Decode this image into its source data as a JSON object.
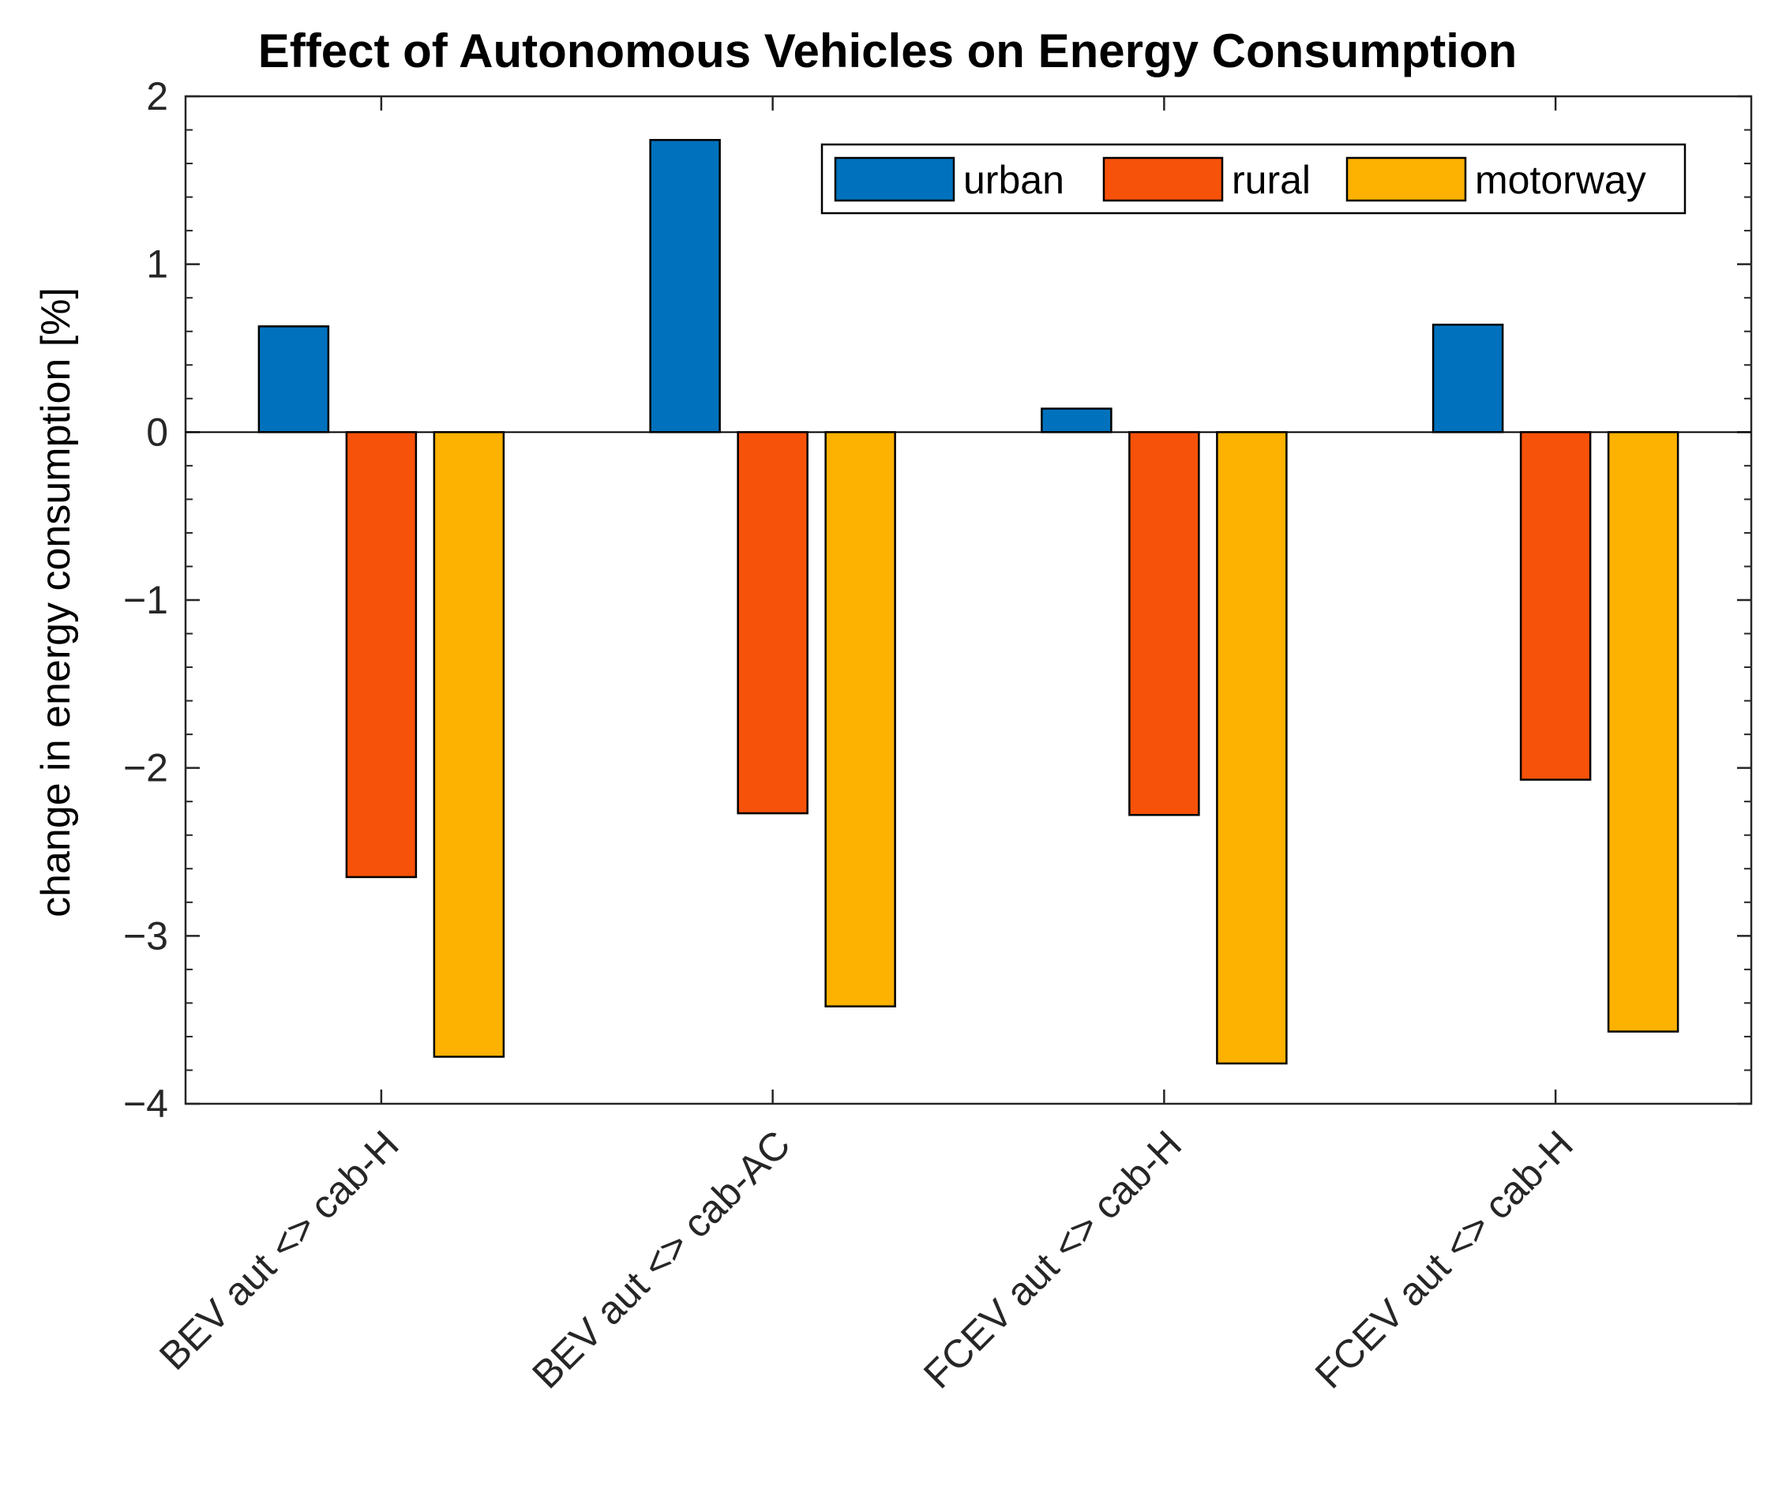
{
  "chart_data": {
    "type": "bar",
    "title": "Effect of Autonomous Vehicles on Energy Consumption",
    "xlabel": "",
    "ylabel": "change in energy consumption [%]",
    "ylim": [
      -4,
      2
    ],
    "yticks": [
      2,
      1,
      0,
      -1,
      -2,
      -3,
      -4
    ],
    "ytick_labels": [
      "2",
      "1",
      "0",
      "−1",
      "−2",
      "−3",
      "−4"
    ],
    "grid": false,
    "legend_position": "top-right",
    "categories": [
      "BEV aut <> cab-H",
      "BEV aut <> cab-AC",
      "FCEV aut <> cab-H",
      "FCEV aut <> cab-H"
    ],
    "series": [
      {
        "name": "urban",
        "color": "#0072BD",
        "values": [
          0.63,
          1.74,
          0.14,
          0.64
        ]
      },
      {
        "name": "rural",
        "color": "#F7520A",
        "values": [
          -2.65,
          -2.27,
          -2.28,
          -2.07
        ]
      },
      {
        "name": "motorway",
        "color": "#FDB100",
        "values": [
          -3.72,
          -3.42,
          -3.76,
          -3.57
        ]
      }
    ]
  }
}
